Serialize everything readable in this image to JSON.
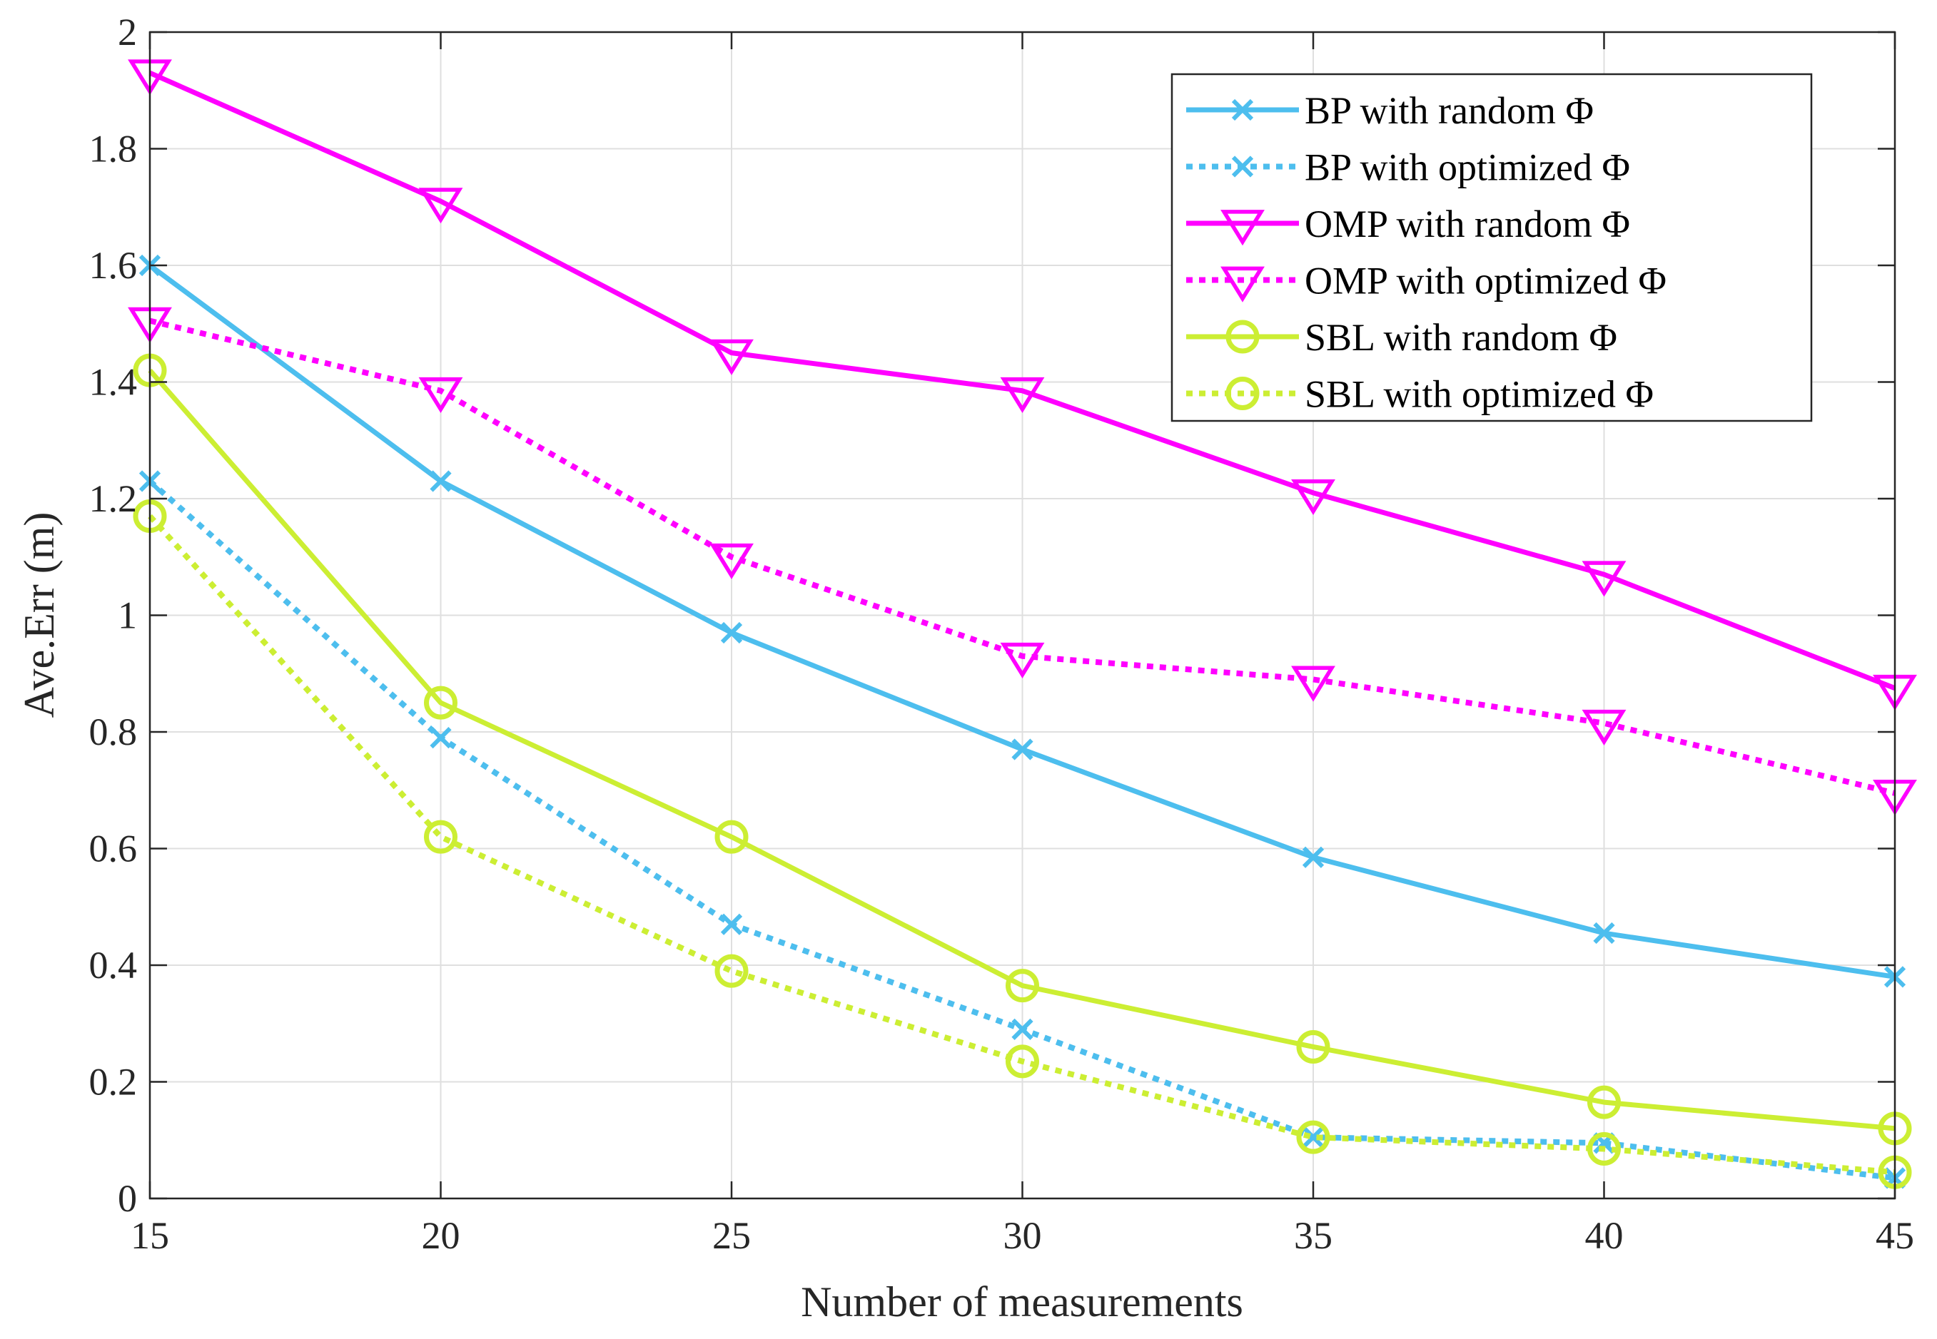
{
  "chart_data": {
    "type": "line",
    "title": "",
    "xlabel": "Number of measurements",
    "ylabel": "Ave.Err (m)",
    "xlim": [
      15,
      45
    ],
    "ylim": [
      0,
      2
    ],
    "xticks": [
      15,
      20,
      25,
      30,
      35,
      40,
      45
    ],
    "xtick_labels": [
      "15",
      "20",
      "25",
      "30",
      "35",
      "40",
      "45"
    ],
    "yticks": [
      0,
      0.2,
      0.4,
      0.6,
      0.8,
      1,
      1.2,
      1.4,
      1.6,
      1.8,
      2
    ],
    "ytick_labels": [
      "0",
      "0.2",
      "0.4",
      "0.6",
      "0.8",
      "1",
      "1.2",
      "1.4",
      "1.6",
      "1.8",
      "2"
    ],
    "grid": true,
    "legend_position": "top-right",
    "x": [
      15,
      20,
      25,
      30,
      35,
      40,
      45
    ],
    "series": [
      {
        "name": "BP with random Φ",
        "color": "#4dbeee",
        "style": "solid",
        "marker": "x",
        "values": [
          1.6,
          1.23,
          0.97,
          0.77,
          0.585,
          0.455,
          0.38
        ]
      },
      {
        "name": "BP with optimized Φ",
        "color": "#4dbeee",
        "style": "dotted",
        "marker": "x",
        "values": [
          1.23,
          0.79,
          0.47,
          0.29,
          0.105,
          0.095,
          0.035
        ]
      },
      {
        "name": "OMP with random Φ",
        "color": "#ff00ff",
        "style": "solid",
        "marker": "triangle-down",
        "values": [
          1.93,
          1.71,
          1.45,
          1.385,
          1.21,
          1.07,
          0.875
        ]
      },
      {
        "name": "OMP with optimized Φ",
        "color": "#ff00ff",
        "style": "dotted",
        "marker": "triangle-down",
        "values": [
          1.505,
          1.385,
          1.1,
          0.93,
          0.89,
          0.815,
          0.695
        ]
      },
      {
        "name": "SBL with random Φ",
        "color": "#ccee33",
        "style": "solid",
        "marker": "circle",
        "values": [
          1.42,
          0.85,
          0.62,
          0.365,
          0.26,
          0.165,
          0.12
        ]
      },
      {
        "name": "SBL with optimized Φ",
        "color": "#ccee33",
        "style": "dotted",
        "marker": "circle",
        "values": [
          1.17,
          0.62,
          0.39,
          0.235,
          0.105,
          0.085,
          0.045
        ]
      }
    ]
  }
}
